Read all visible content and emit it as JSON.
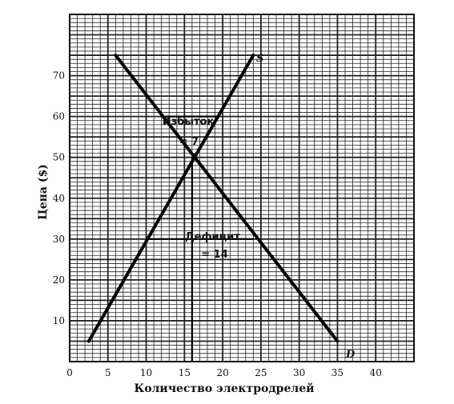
{
  "chart_data": {
    "type": "line",
    "xlabel": "Количество электродрелей",
    "ylabel": "Цена ($)",
    "xlim": [
      0,
      45
    ],
    "ylim": [
      0,
      85
    ],
    "xticks": [
      0,
      5,
      10,
      15,
      20,
      25,
      30,
      35,
      40
    ],
    "yticks": [
      10,
      20,
      30,
      40,
      50,
      60,
      70
    ],
    "grid": true,
    "series": [
      {
        "name": "S",
        "x": [
          2.5,
          24
        ],
        "y": [
          5,
          75
        ]
      },
      {
        "name": "D",
        "x": [
          6,
          35
        ],
        "y": [
          75,
          5
        ]
      }
    ],
    "equilibrium": {
      "x": 16,
      "y": 50
    },
    "annotations": [
      {
        "id": "surplus",
        "line1": "Избыток",
        "line2": "= 7",
        "price": 60,
        "x_from": 12.5,
        "x_to": 19.5
      },
      {
        "id": "shortage",
        "line1": "Дефицит.",
        "line2": "= 14",
        "price": 30,
        "x_from": 10,
        "x_to": 24
      }
    ]
  }
}
